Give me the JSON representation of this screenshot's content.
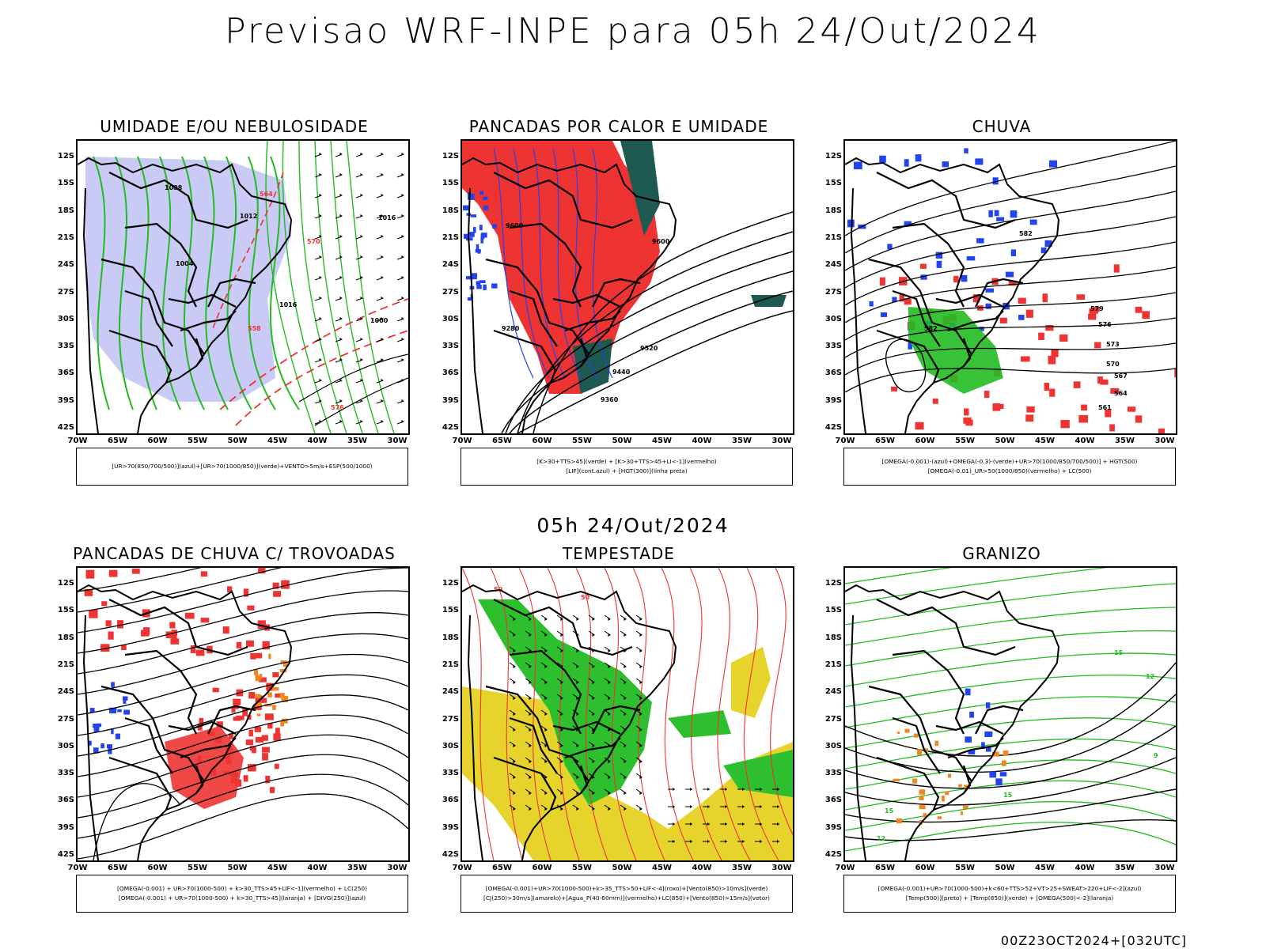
{
  "title": "Previsao WRF-INPE  para 05h 24/Out/2024",
  "mid_title": "05h 24/Out/2024",
  "footer": "00Z23OCT2024+[032UTC]",
  "lat_labels": [
    "12S",
    "15S",
    "18S",
    "21S",
    "24S",
    "27S",
    "30S",
    "33S",
    "36S",
    "39S",
    "42S"
  ],
  "lon_labels": [
    "70W",
    "65W",
    "60W",
    "55W",
    "50W",
    "45W",
    "40W",
    "35W",
    "30W"
  ],
  "colors": {
    "red": "#ee3333",
    "green": "#22bb22",
    "blue": "#2244ee",
    "lavender": "#b8b8f4",
    "teal": "#1f5a52",
    "yellow": "#e6d42c",
    "orange": "#ee8822"
  },
  "panels": [
    {
      "title": "UMIDADE E/OU NEBULOSIDADE",
      "legend": [
        "[UR>70(850/700/500)](azul)+[UR>70(1000/850)](verde)+VENTO>5m/s+ESP(500/1000)"
      ],
      "labels": [
        "1008",
        "1004",
        "1012",
        "1016",
        "576",
        "570",
        "564",
        "558",
        "1016",
        "1000"
      ]
    },
    {
      "title": "PANCADAS POR CALOR E UMIDADE",
      "legend": [
        "[K>30+TTS>45](verde) + [K>30+TTS>45+LI<-1](vermelho)",
        "[LIF](cont.azul) + [HGT(300)](linha preta)"
      ],
      "labels": [
        "9600",
        "9520",
        "9440",
        "9360",
        "9280",
        "9600"
      ]
    },
    {
      "title": "CHUVA",
      "legend": [
        "[OMEGA(-0.001)-(azul)+OMEGA(-0.3)-(verde)+UR>70(1000/850/700/500)] + HGT(500)",
        "[OMEGA(-0.01)_UR>50(1000/850)(vermelho) + LC(500)"
      ],
      "labels": [
        "582",
        "579",
        "576",
        "573",
        "570",
        "567",
        "564",
        "561",
        "582"
      ]
    },
    {
      "title": "PANCADAS DE CHUVA C/ TROVOADAS",
      "legend": [
        "[OMEGA(-0.001) + UR>70(1000-500) + k>30_TTS>45+LIF<-1](vermelho) + LC(250)",
        "[OMEGA(-0.001) + UR>70(1000-500) + k>30_TTS>45](laranja) + [DIVG(250)](azul)"
      ],
      "labels": []
    },
    {
      "title": "TEMPESTADE",
      "legend": [
        "[OMEGA(-0.001)+UR>70(1000-500)+k>35_TTS>50+LIF<-4](roxo)+[Vento(850)>10m/s](verde)",
        "[CJ(250)>30m/s](amarelo)+[Agua_P(40-60mm)](vermelho)+LC(850)+[Vento(850)>15m/s](vetor)"
      ],
      "labels": [
        "50",
        "50"
      ]
    },
    {
      "title": "GRANIZO",
      "legend": [
        "[OMEGA(-0.001)+UR>70(1000-500)+k<60+TTS>52+VT>25+SWEAT>220+LIF<-2](azul)",
        "[Temp(500)](preto) + [Temp(850)](verde) + [OMEGA(500)<-2](laranja)"
      ],
      "labels": [
        "15",
        "12",
        "9",
        "15",
        "15",
        "12"
      ]
    }
  ]
}
